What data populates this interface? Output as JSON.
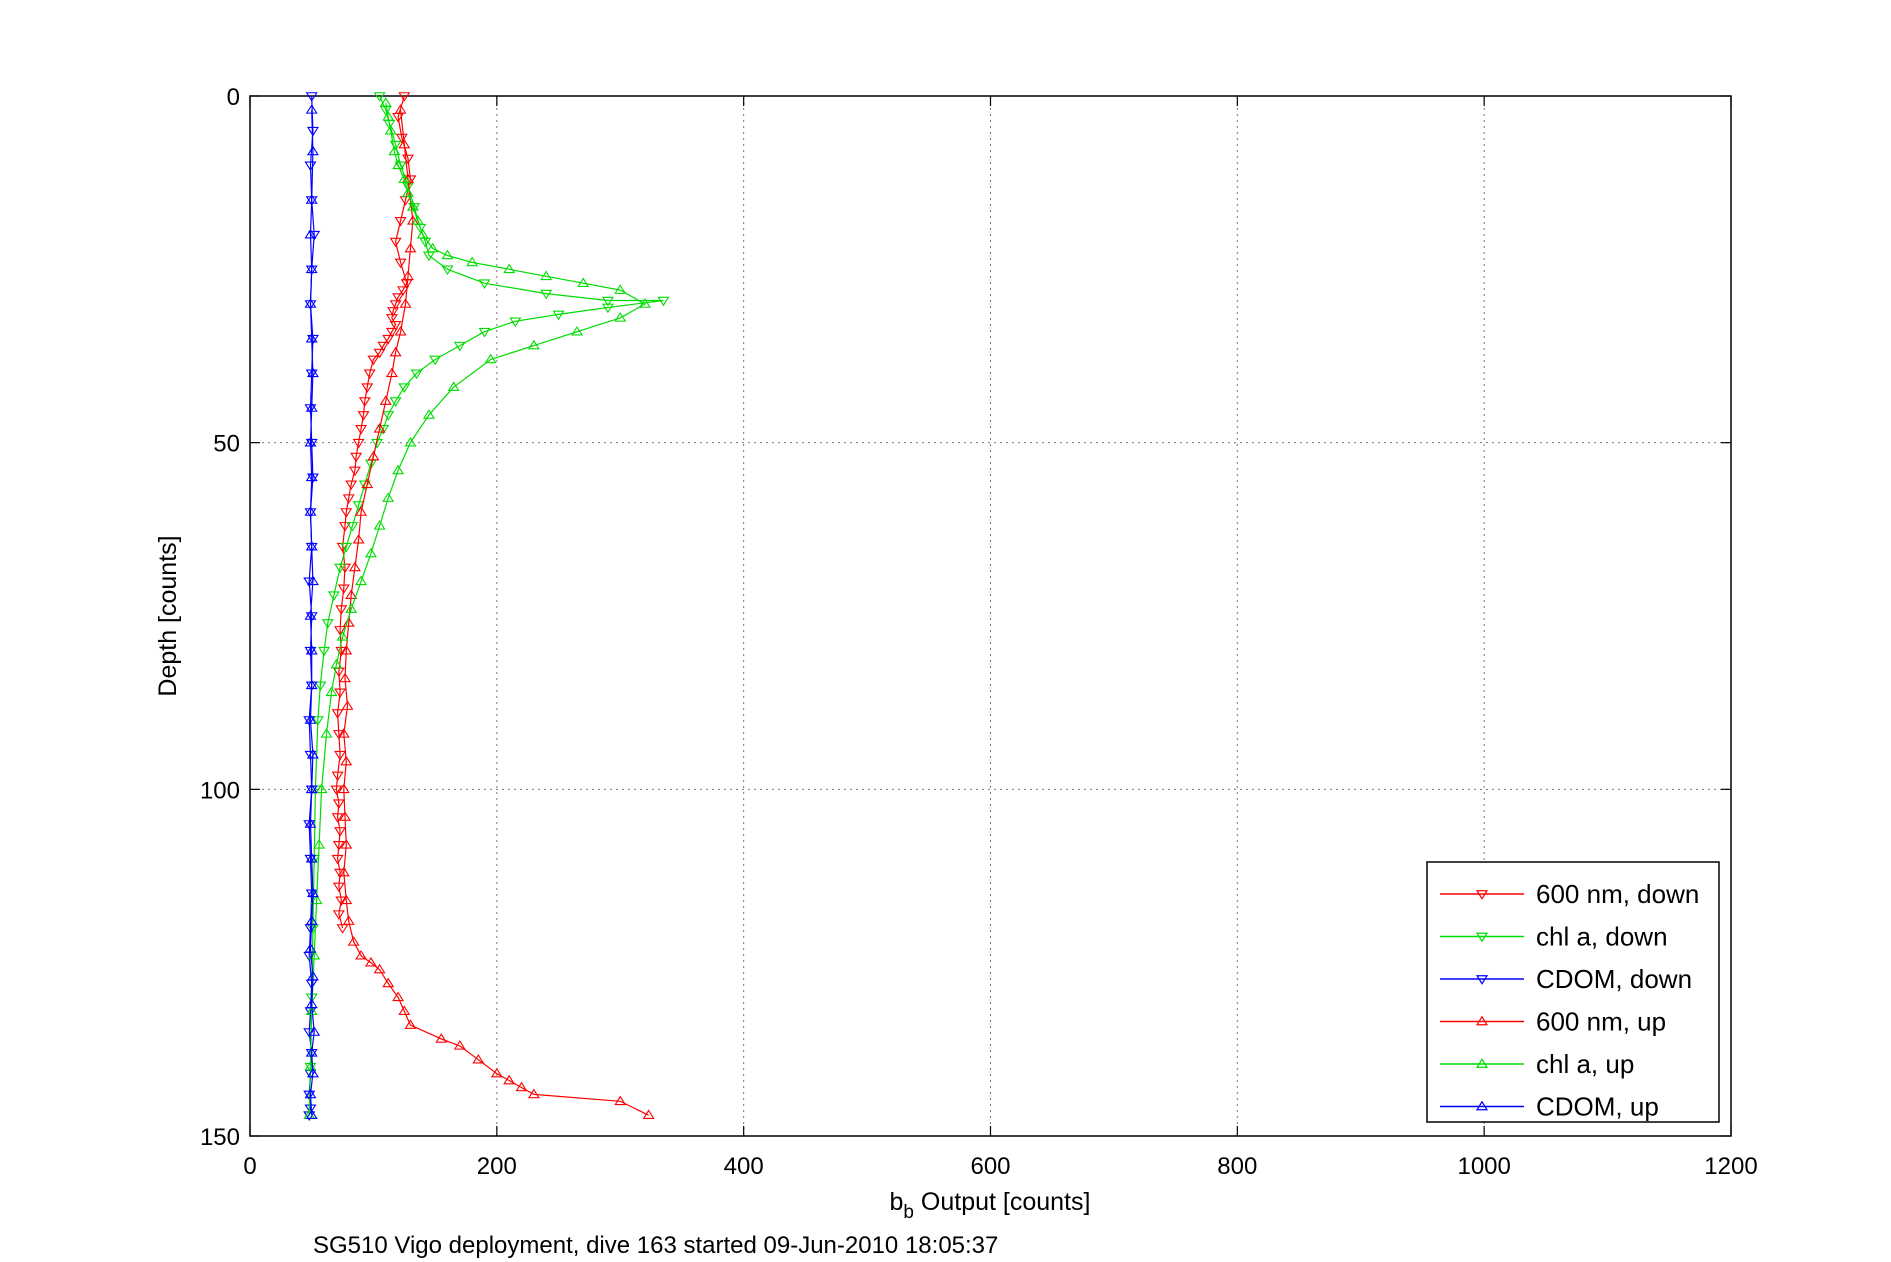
{
  "chart_data": {
    "type": "scatter",
    "title": "",
    "xlabel_main": "b",
    "xlabel_sub": "b",
    "xlabel_rest": " Output [counts]",
    "ylabel": "Depth [counts]",
    "caption": "SG510 Vigo deployment, dive 163 started 09-Jun-2010 18:05:37",
    "xlim": [
      0,
      1200
    ],
    "ylim": [
      0,
      150
    ],
    "y_reversed": true,
    "grid": true,
    "legend_position": "bottom-right",
    "x_ticks": [
      "0",
      "200",
      "400",
      "600",
      "800",
      "1000",
      "1200"
    ],
    "y_ticks": [
      "0",
      "50",
      "100",
      "150"
    ],
    "series": [
      {
        "name": "600 nm, down",
        "color": "#ff0000",
        "marker": "triangle-down",
        "x": [
          125,
          120,
          123,
          128,
          130,
          126,
          122,
          118,
          122,
          127,
          124,
          120,
          118,
          116,
          115,
          118,
          115,
          112,
          108,
          105,
          100,
          97,
          95,
          93,
          92,
          90,
          88,
          86,
          85,
          82,
          80,
          78,
          77,
          75,
          77,
          76,
          74,
          73,
          74,
          72,
          73,
          71,
          72,
          73,
          71,
          70,
          72,
          71,
          73,
          72,
          71,
          73,
          72,
          74,
          72,
          75
        ],
        "y": [
          0,
          3,
          6,
          9,
          12,
          15,
          18,
          21,
          24,
          27,
          28,
          29,
          30,
          31,
          32,
          33,
          34,
          35,
          36,
          37,
          38,
          40,
          42,
          44,
          46,
          48,
          50,
          52,
          54,
          56,
          58,
          60,
          62,
          65,
          68,
          71,
          74,
          77,
          80,
          83,
          86,
          89,
          92,
          95,
          98,
          100,
          102,
          104,
          106,
          108,
          110,
          112,
          114,
          116,
          118,
          120
        ]
      },
      {
        "name": "chl a, down",
        "color": "#00dd00",
        "marker": "triangle-down",
        "x": [
          105,
          110,
          113,
          118,
          122,
          128,
          133,
          138,
          142,
          145,
          160,
          190,
          240,
          290,
          335,
          290,
          250,
          215,
          190,
          170,
          150,
          135,
          125,
          118,
          112,
          108,
          103,
          98,
          93,
          88,
          83,
          78,
          73,
          68,
          63,
          60,
          57,
          55,
          53,
          52,
          51,
          50,
          49,
          48
        ],
        "y": [
          0,
          2,
          4,
          7,
          10,
          13,
          16,
          19,
          21,
          23,
          25,
          27,
          28.5,
          29.5,
          29.5,
          30.5,
          31.5,
          32.5,
          34,
          36,
          38,
          40,
          42,
          44,
          46,
          48,
          50,
          53,
          56,
          59,
          62,
          65,
          68,
          72,
          76,
          80,
          85,
          90,
          100,
          110,
          120,
          130,
          140,
          147
        ]
      },
      {
        "name": "CDOM, down",
        "color": "#0000ff",
        "marker": "triangle-down",
        "x": [
          50,
          51,
          49,
          50,
          52,
          50,
          49,
          51,
          50,
          49,
          50,
          51,
          49,
          50,
          48,
          50,
          49,
          50,
          48,
          49,
          50,
          48,
          49,
          50,
          49,
          48,
          50,
          49,
          48,
          50,
          49,
          48,
          49,
          48
        ],
        "y": [
          0,
          5,
          10,
          15,
          20,
          25,
          30,
          35,
          40,
          45,
          50,
          55,
          60,
          65,
          70,
          75,
          80,
          85,
          90,
          95,
          100,
          105,
          110,
          115,
          120,
          124,
          128,
          132,
          135,
          138,
          141,
          144,
          146,
          147
        ]
      },
      {
        "name": "600 nm, up",
        "color": "#ff0000",
        "marker": "triangle-up",
        "x": [
          323,
          300,
          230,
          220,
          210,
          200,
          185,
          170,
          155,
          130,
          125,
          120,
          112,
          105,
          98,
          90,
          84,
          80,
          78,
          76,
          78,
          77,
          76,
          78,
          76,
          79,
          77,
          78,
          80,
          82,
          85,
          88,
          90,
          95,
          100,
          105,
          110,
          115,
          118,
          122,
          126,
          128,
          130,
          132,
          128,
          125,
          122
        ],
        "y": [
          147,
          145,
          144,
          143,
          142,
          141,
          139,
          137,
          136,
          134,
          132,
          130,
          128,
          126,
          125,
          124,
          122,
          119,
          116,
          112,
          108,
          104,
          100,
          96,
          92,
          88,
          84,
          80,
          76,
          72,
          68,
          64,
          60,
          56,
          52,
          48,
          44,
          40,
          37,
          34,
          30,
          26,
          22,
          18,
          12,
          7,
          2
        ]
      },
      {
        "name": "chl a, up",
        "color": "#00dd00",
        "marker": "triangle-up",
        "x": [
          48,
          49,
          50,
          52,
          54,
          56,
          58,
          62,
          66,
          70,
          75,
          82,
          90,
          98,
          105,
          112,
          120,
          130,
          145,
          165,
          195,
          230,
          265,
          300,
          320,
          300,
          270,
          240,
          210,
          180,
          160,
          148,
          140,
          136,
          132,
          128,
          125,
          120,
          117,
          114,
          112,
          110
        ],
        "y": [
          147,
          140,
          132,
          124,
          116,
          108,
          100,
          92,
          86,
          82,
          78,
          74,
          70,
          66,
          62,
          58,
          54,
          50,
          46,
          42,
          38,
          36,
          34,
          32,
          30,
          28,
          27,
          26,
          25,
          24,
          23,
          22,
          20,
          18,
          16,
          14,
          12,
          10,
          8,
          5,
          3,
          1
        ]
      },
      {
        "name": "CDOM, up",
        "color": "#0000ff",
        "marker": "triangle-up",
        "x": [
          50,
          49,
          51,
          50,
          52,
          50,
          51,
          49,
          50,
          51,
          50,
          49,
          50,
          51,
          49,
          50,
          50,
          49,
          51,
          50,
          49,
          50,
          49,
          50,
          51,
          50,
          49,
          50,
          49,
          50,
          51,
          50
        ],
        "y": [
          147,
          144,
          141,
          138,
          135,
          131,
          127,
          123,
          119,
          115,
          110,
          105,
          100,
          95,
          90,
          85,
          80,
          75,
          70,
          65,
          60,
          55,
          50,
          45,
          40,
          35,
          30,
          25,
          20,
          15,
          8,
          2
        ]
      }
    ]
  }
}
